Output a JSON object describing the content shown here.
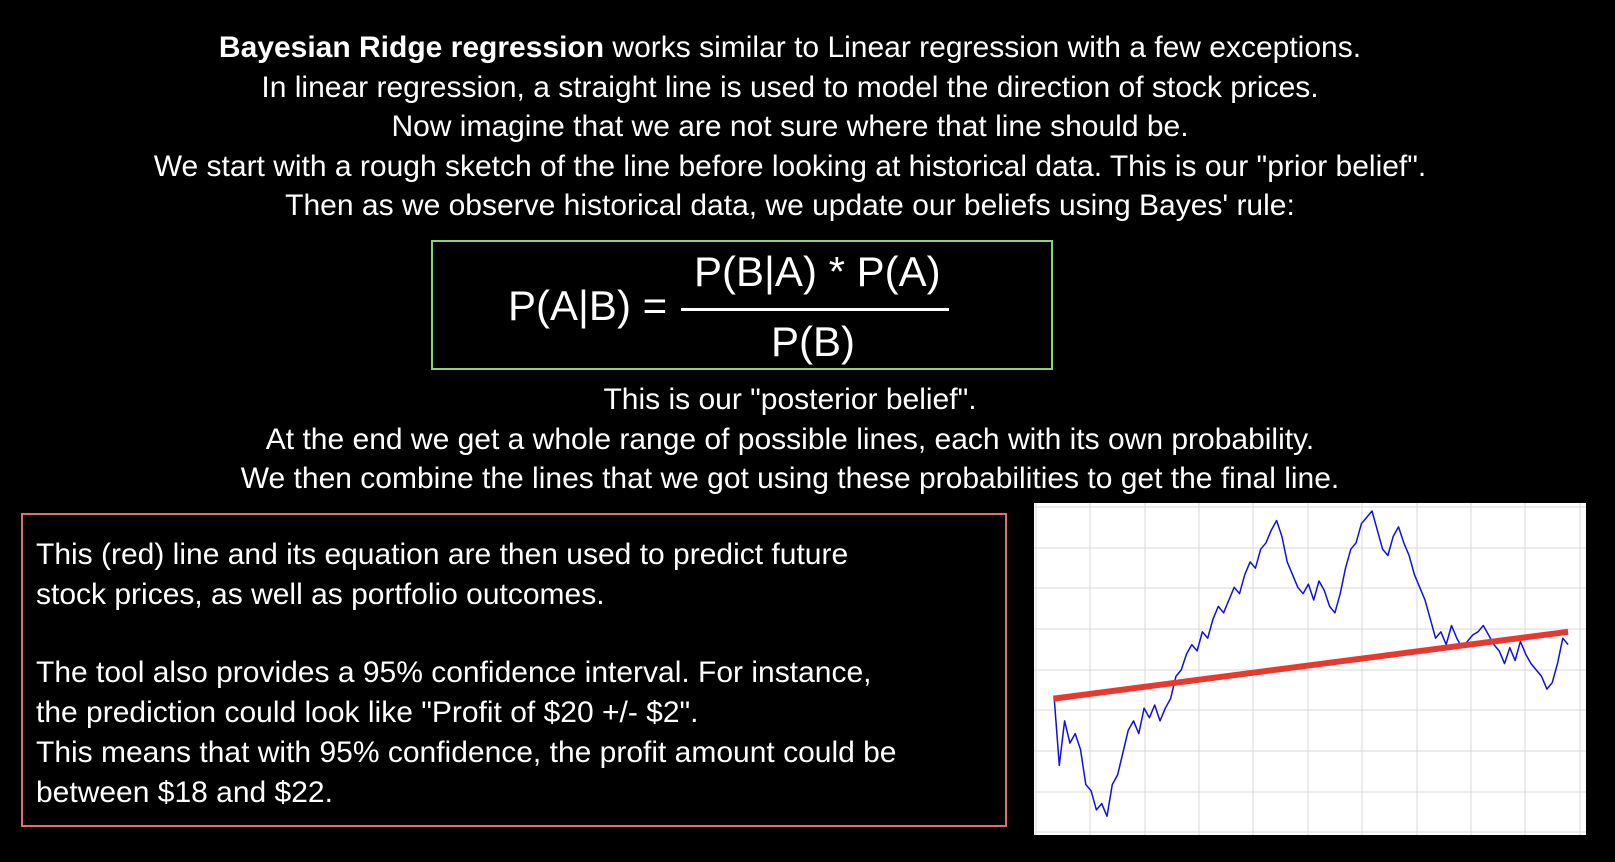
{
  "intro": {
    "line1_bold": "Bayesian Ridge regression",
    "line1_rest": " works similar to Linear regression with a few exceptions.",
    "line2": "In linear regression, a straight line is used to model the direction of stock prices.",
    "line3": "Now imagine that we are not sure where that line should be.",
    "line4": "We start with a rough sketch of the line before looking at historical data. This is our \"prior belief\".",
    "line5": "Then as we observe historical data, we update our beliefs using Bayes' rule:"
  },
  "formula": {
    "lhs": "P(A|B) =",
    "numerator": "P(B|A) * P(A)",
    "denominator": "P(B)",
    "border_color": "#8fd07a"
  },
  "outro": {
    "line1": "This is our \"posterior belief\".",
    "line2": "At the end we get a whole range of possible lines, each with its own probability.",
    "line3": "We then combine the lines that we got using these probabilities to get the final line."
  },
  "explanation": {
    "border_color": "#e07070",
    "line1": "This (red) line and its equation are then used to predict future",
    "line2": "stock prices, as well as portfolio outcomes.",
    "line3": "The tool also provides a 95% confidence interval. For instance,",
    "line4": "the prediction could look like \"Profit of $20 +/- $2\".",
    "line5": "This means that with 95% confidence, the profit amount could be",
    "line6": "between $18 and $22."
  },
  "chart_data": {
    "type": "line",
    "grid": true,
    "xlim": [
      0,
      100
    ],
    "ylim": [
      0,
      100
    ],
    "series": [
      {
        "color": "#1010e0",
        "x": [
          0,
          1,
          2,
          3,
          4,
          5,
          6,
          7,
          8,
          9,
          10,
          11,
          12,
          13,
          14,
          15,
          16,
          17,
          18,
          19,
          20,
          21,
          22,
          23,
          24,
          25,
          26,
          27,
          28,
          29,
          30,
          31,
          32,
          33,
          34,
          35,
          36,
          37,
          38,
          39,
          40,
          41,
          42,
          43,
          44,
          45,
          46,
          47,
          48,
          49,
          50,
          51,
          52,
          53,
          54,
          55,
          56,
          57,
          58,
          59,
          60,
          61,
          62,
          63,
          64,
          65,
          66,
          67,
          68,
          69,
          70,
          71,
          72,
          73,
          74,
          75,
          76,
          77,
          78,
          79,
          80,
          81,
          82,
          83,
          84,
          85,
          86,
          87,
          88,
          89,
          90,
          91,
          92,
          93,
          94,
          95,
          96,
          97
        ],
        "values": [
          42,
          20,
          34,
          27,
          30,
          25,
          14,
          12,
          6,
          8,
          4,
          14,
          17,
          24,
          31,
          34,
          30,
          38,
          35,
          39,
          34,
          38,
          41,
          48,
          50,
          55,
          58,
          56,
          62,
          60,
          66,
          70,
          68,
          72,
          76,
          74,
          80,
          84,
          82,
          88,
          90,
          94,
          97,
          92,
          84,
          80,
          76,
          74,
          77,
          72,
          78,
          75,
          70,
          68,
          74,
          82,
          88,
          90,
          96,
          98,
          100,
          94,
          88,
          86,
          92,
          95,
          90,
          86,
          80,
          76,
          72,
          66,
          60,
          62,
          58,
          64,
          60,
          57,
          59,
          61,
          62,
          64,
          61,
          58,
          56,
          52,
          57,
          53,
          59,
          55,
          52,
          50,
          48,
          44,
          46,
          52,
          60,
          58
        ]
      },
      {
        "color": "#e8392e",
        "x": [
          0,
          97
        ],
        "values": [
          41,
          62
        ]
      }
    ]
  }
}
